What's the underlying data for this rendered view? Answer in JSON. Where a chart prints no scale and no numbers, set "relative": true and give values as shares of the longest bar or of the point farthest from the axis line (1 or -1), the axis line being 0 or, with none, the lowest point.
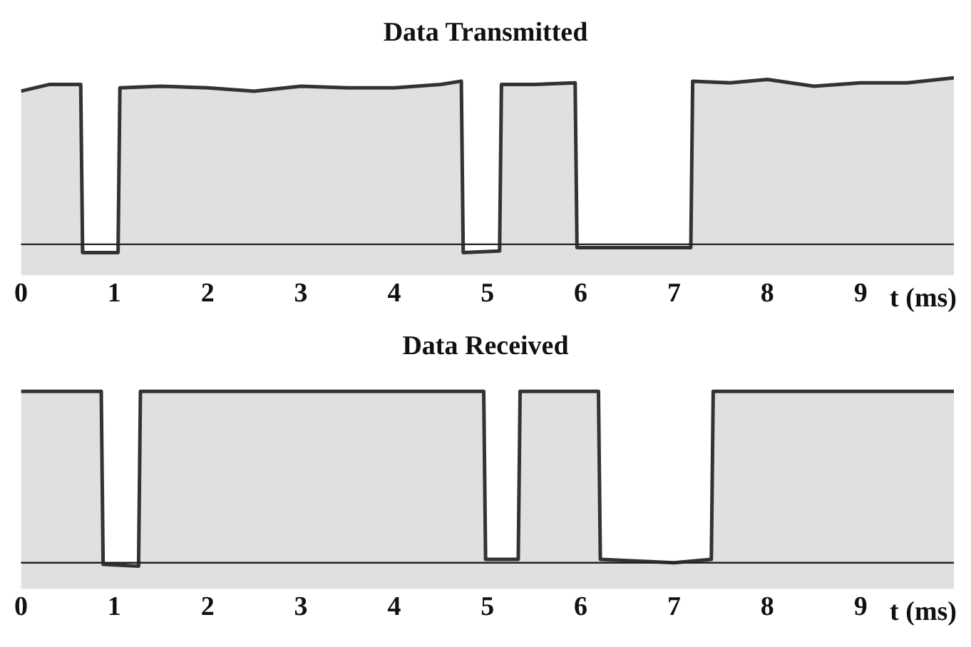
{
  "chart_data": [
    {
      "type": "area",
      "title": "Data Transmitted",
      "xlabel": "t (ms)",
      "relative": true,
      "xlim": [
        0,
        10
      ],
      "xticks": [
        0,
        1,
        2,
        3,
        4,
        5,
        6,
        7,
        8,
        9
      ],
      "tick_labels": "x",
      "grid": false,
      "legend": false,
      "marker": "none",
      "line_style": "solid",
      "series": [
        {
          "color": "#333333",
          "x": [
            0,
            0.3,
            0.64,
            0.66,
            1.04,
            1.06,
            1.5,
            2.0,
            2.5,
            3.0,
            3.5,
            4.0,
            4.5,
            4.72,
            4.74,
            5.13,
            5.15,
            5.5,
            5.94,
            5.96,
            6.5,
            7.18,
            7.2,
            7.6,
            8.0,
            8.5,
            9.0,
            9.5,
            10
          ],
          "values": [
            0.92,
            0.96,
            0.96,
            -0.05,
            -0.05,
            0.94,
            0.95,
            0.94,
            0.92,
            0.95,
            0.94,
            0.94,
            0.96,
            0.98,
            -0.05,
            -0.04,
            0.96,
            0.96,
            0.97,
            -0.02,
            -0.02,
            -0.02,
            0.98,
            0.97,
            0.99,
            0.95,
            0.97,
            0.97,
            1
          ]
        }
      ]
    },
    {
      "type": "area",
      "title": "Data Received",
      "xlabel": "t (ms)",
      "relative": true,
      "xlim": [
        0,
        10
      ],
      "xticks": [
        0,
        1,
        2,
        3,
        4,
        5,
        6,
        7,
        8,
        9
      ],
      "tick_labels": "x",
      "grid": false,
      "legend": false,
      "marker": "none",
      "line_style": "solid",
      "series": [
        {
          "color": "#333333",
          "x": [
            0,
            0.86,
            0.88,
            1.26,
            1.28,
            2,
            3,
            4,
            4.96,
            4.98,
            5.33,
            5.35,
            6.19,
            6.21,
            7,
            7.4,
            7.42,
            8,
            9,
            10
          ],
          "values": [
            1,
            1,
            -0.01,
            -0.02,
            1,
            1,
            1,
            1,
            1,
            0.02,
            0.02,
            1,
            1,
            0.02,
            0,
            0.02,
            1,
            1,
            1,
            1
          ]
        }
      ]
    }
  ]
}
